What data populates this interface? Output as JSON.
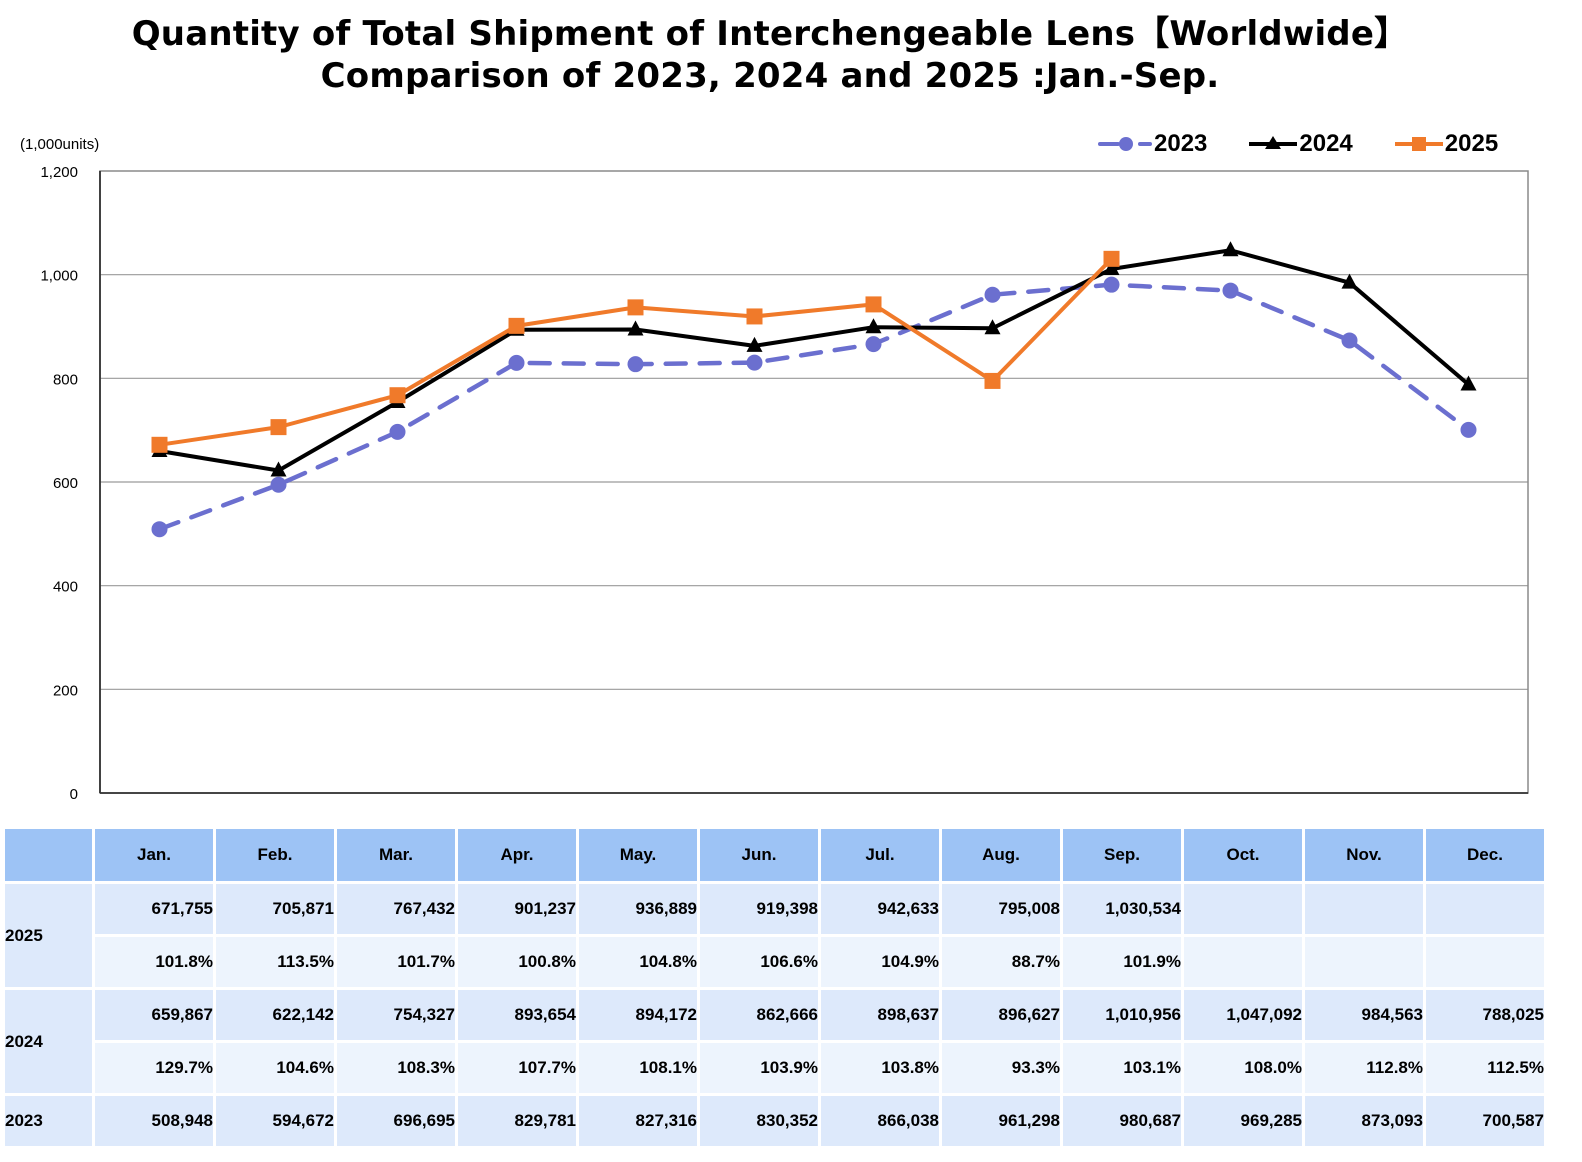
{
  "title_line1": "Quantity of Total Shipment of Interchengeable Lens【Worldwide】",
  "title_line2": "Comparison of 2023, 2024 and 2025 :Jan.-Sep.",
  "unit_label": "(1,000units)",
  "legend": [
    {
      "label": "2023",
      "color": "#6b6fcf",
      "marker": "circle",
      "dash": true
    },
    {
      "label": "2024",
      "color": "#000000",
      "marker": "triangle",
      "dash": false
    },
    {
      "label": "2025",
      "color": "#f07a2a",
      "marker": "square",
      "dash": false
    }
  ],
  "chart_data": {
    "type": "line",
    "title": "Quantity of Total Shipment of Interchengeable Lens【Worldwide】 Comparison of 2023, 2024 and 2025 :Jan.-Sep.",
    "ylabel": "(1,000units)",
    "xlabel": "",
    "ylim": [
      0,
      1200
    ],
    "yticks": [
      0,
      200,
      400,
      600,
      800,
      1000,
      1200
    ],
    "ytick_labels": [
      "0",
      "200",
      "400",
      "600",
      "800",
      "1,000",
      "1,200"
    ],
    "grid": true,
    "legend_position": "top-right",
    "categories": [
      "Jan.",
      "Feb.",
      "Mar.",
      "Apr.",
      "May.",
      "Jun.",
      "Jul.",
      "Aug.",
      "Sep.",
      "Oct.",
      "Nov.",
      "Dec."
    ],
    "series": [
      {
        "name": "2023",
        "color": "#6b6fcf",
        "marker": "circle",
        "dashed": true,
        "values": [
          508.948,
          594.672,
          696.695,
          829.781,
          827.316,
          830.352,
          866.038,
          961.298,
          980.687,
          969.285,
          873.093,
          700.587
        ]
      },
      {
        "name": "2024",
        "color": "#000000",
        "marker": "triangle",
        "dashed": false,
        "values": [
          659.867,
          622.142,
          754.327,
          893.654,
          894.172,
          862.666,
          898.637,
          896.627,
          1010.956,
          1047.092,
          984.563,
          788.025
        ]
      },
      {
        "name": "2025",
        "color": "#f07a2a",
        "marker": "square",
        "dashed": false,
        "values": [
          671.755,
          705.871,
          767.432,
          901.237,
          936.889,
          919.398,
          942.633,
          795.008,
          1030.534,
          null,
          null,
          null
        ]
      }
    ]
  },
  "table": {
    "months": [
      "Jan.",
      "Feb.",
      "Mar.",
      "Apr.",
      "May.",
      "Jun.",
      "Jul.",
      "Aug.",
      "Sep.",
      "Oct.",
      "Nov.",
      "Dec."
    ],
    "rows": [
      {
        "year": "2025",
        "values": [
          "671,755",
          "705,871",
          "767,432",
          "901,237",
          "936,889",
          "919,398",
          "942,633",
          "795,008",
          "1,030,534",
          "",
          "",
          ""
        ],
        "pct": [
          "101.8%",
          "113.5%",
          "101.7%",
          "100.8%",
          "104.8%",
          "106.6%",
          "104.9%",
          "88.7%",
          "101.9%",
          "",
          "",
          ""
        ]
      },
      {
        "year": "2024",
        "values": [
          "659,867",
          "622,142",
          "754,327",
          "893,654",
          "894,172",
          "862,666",
          "898,637",
          "896,627",
          "1,010,956",
          "1,047,092",
          "984,563",
          "788,025"
        ],
        "pct": [
          "129.7%",
          "104.6%",
          "108.3%",
          "107.7%",
          "108.1%",
          "103.9%",
          "103.8%",
          "93.3%",
          "103.1%",
          "108.0%",
          "112.8%",
          "112.5%"
        ]
      },
      {
        "year": "2023",
        "values": [
          "508,948",
          "594,672",
          "696,695",
          "829,781",
          "827,316",
          "830,352",
          "866,038",
          "961,298",
          "980,687",
          "969,285",
          "873,093",
          "700,587"
        ]
      }
    ]
  }
}
